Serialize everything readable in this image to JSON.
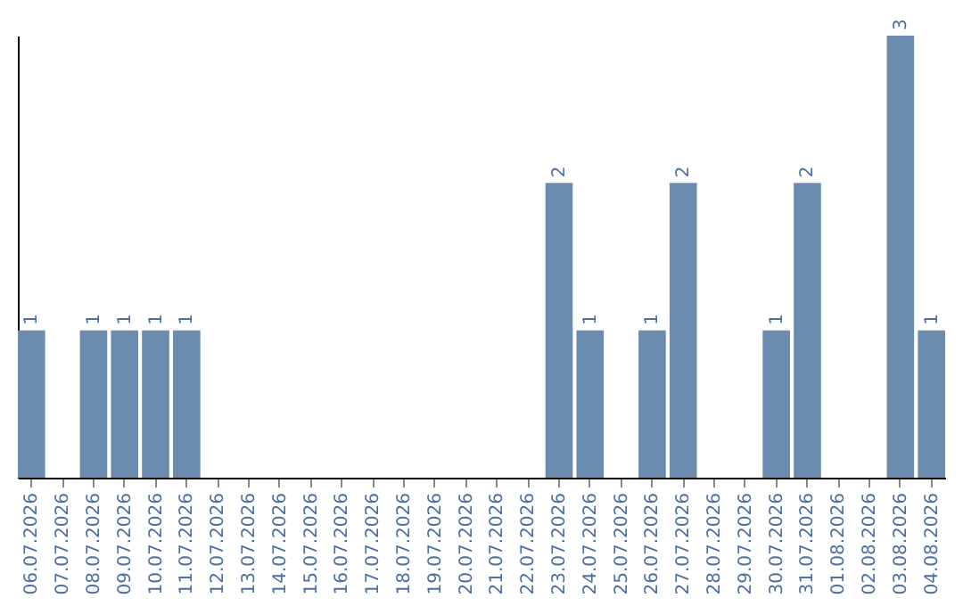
{
  "chart_data": {
    "type": "bar",
    "categories": [
      "06.07.2026",
      "07.07.2026",
      "08.07.2026",
      "09.07.2026",
      "10.07.2026",
      "11.07.2026",
      "12.07.2026",
      "13.07.2026",
      "14.07.2026",
      "15.07.2026",
      "16.07.2026",
      "17.07.2026",
      "18.07.2026",
      "19.07.2026",
      "20.07.2026",
      "21.07.2026",
      "22.07.2026",
      "23.07.2026",
      "24.07.2026",
      "25.07.2026",
      "26.07.2026",
      "27.07.2026",
      "28.07.2026",
      "29.07.2026",
      "30.07.2026",
      "31.07.2026",
      "01.08.2026",
      "02.08.2026",
      "03.08.2026",
      "04.08.2026"
    ],
    "values": [
      1,
      0,
      1,
      1,
      1,
      1,
      0,
      0,
      0,
      0,
      0,
      0,
      0,
      0,
      0,
      0,
      0,
      2,
      1,
      0,
      1,
      2,
      0,
      0,
      1,
      2,
      0,
      0,
      3,
      1
    ],
    "value_labels": [
      "1",
      null,
      "1",
      "1",
      "1",
      "1",
      null,
      null,
      null,
      null,
      null,
      null,
      null,
      null,
      null,
      null,
      null,
      "2",
      "1",
      null,
      "1",
      "2",
      null,
      null,
      "1",
      "2",
      null,
      null,
      "3",
      "1"
    ],
    "color": "#6b8cae",
    "ylim": [
      0,
      3
    ],
    "tick_labels": "x",
    "grid": false
  }
}
